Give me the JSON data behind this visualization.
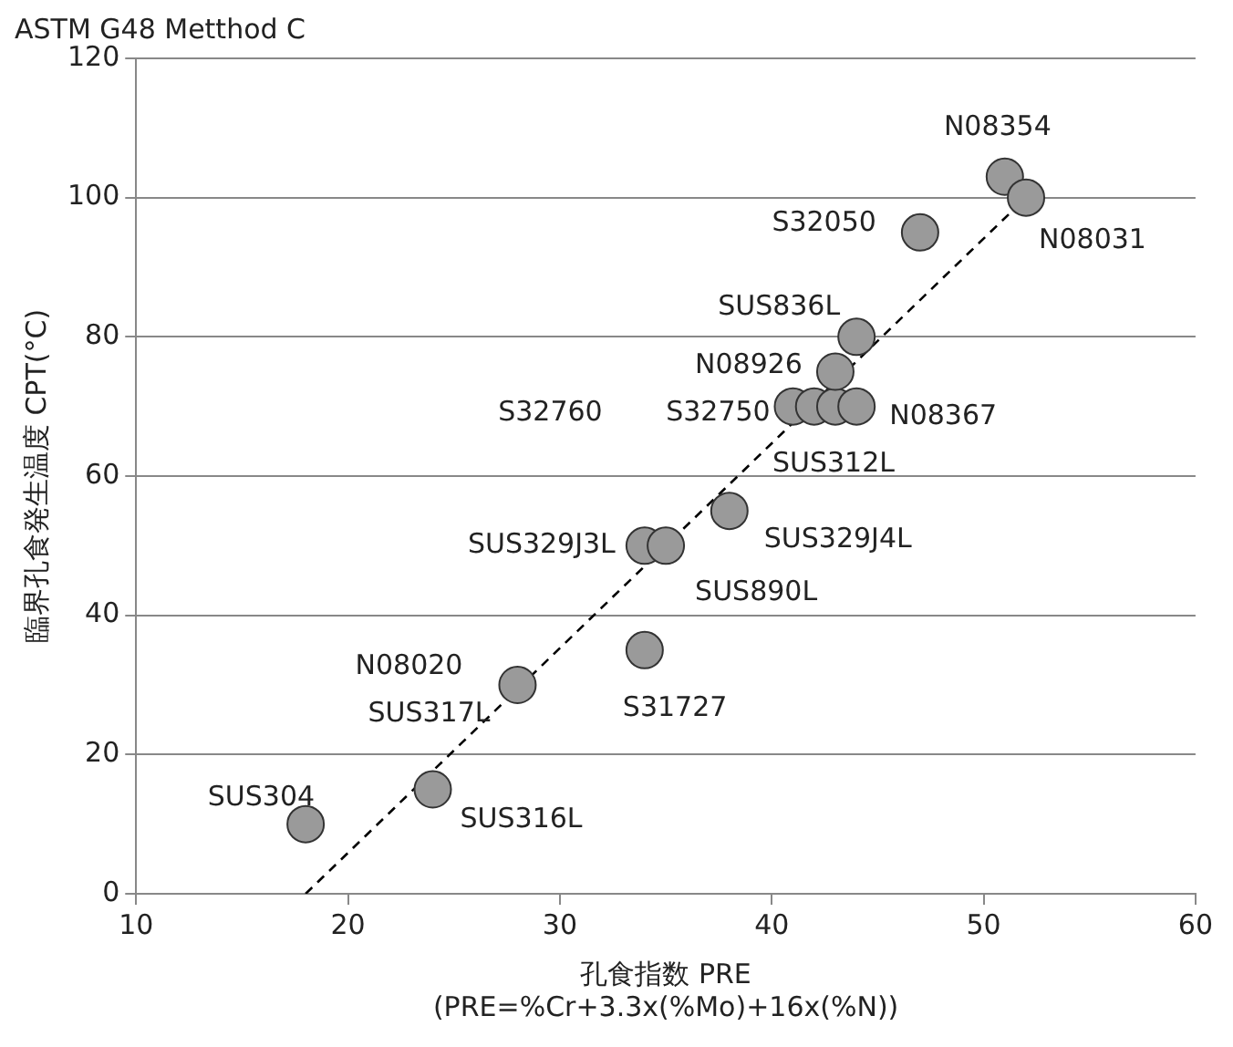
{
  "chart_data": {
    "type": "scatter",
    "title": "ASTM G48 Metthod C",
    "xlabel": "孔食指数 PRE\n(PRE=%Cr+3.3x(%Mo)+16x(%N))",
    "ylabel": "臨界孔食発生温度 CPT(°C)",
    "xlim": [
      10,
      60
    ],
    "xticks": [
      10,
      20,
      30,
      40,
      50,
      60
    ],
    "ylim": [
      0,
      120
    ],
    "yticks": [
      0,
      20,
      40,
      60,
      80,
      100,
      120
    ],
    "grid": "y",
    "legend": false,
    "marker": "circle",
    "series": [
      {
        "type": "scatter",
        "color": "#9a9a9a",
        "x": [
          18,
          24,
          28,
          34,
          34,
          35,
          38,
          41,
          42,
          43,
          44,
          43,
          44,
          47,
          51,
          52
        ],
        "values": [
          10,
          15,
          30,
          35,
          50,
          50,
          55,
          70,
          70,
          70,
          70,
          75,
          80,
          95,
          103,
          100
        ]
      },
      {
        "type": "line",
        "color": "#000000",
        "line_style": "dashed",
        "marker": "none",
        "x": [
          18,
          52
        ],
        "values": [
          0,
          100
        ]
      }
    ],
    "annotations": [
      {
        "text": "SUS304",
        "x": 18,
        "y": 10
      },
      {
        "text": "N08020",
        "x": 28,
        "y": 30
      },
      {
        "text": "SUS317L",
        "x": 28,
        "y": 30
      },
      {
        "text": "SUS316L",
        "x": 24,
        "y": 15
      },
      {
        "text": "S31727",
        "x": 34,
        "y": 35
      },
      {
        "text": "SUS329J3L",
        "x": 34,
        "y": 50
      },
      {
        "text": "SUS890L",
        "x": 35,
        "y": 50
      },
      {
        "text": "SUS329J4L",
        "x": 38,
        "y": 55
      },
      "S32760",
      {
        "text": "S32750",
        "x": 42,
        "y": 70
      },
      {
        "text": "SUS312L",
        "x": 43,
        "y": 70
      },
      {
        "text": "N08367",
        "x": 44,
        "y": 70
      },
      {
        "text": "N08926",
        "x": 43,
        "y": 75
      },
      {
        "text": "SUS836L",
        "x": 44,
        "y": 80
      },
      {
        "text": "S32050",
        "x": 47,
        "y": 95
      },
      {
        "text": "N08354",
        "x": 51,
        "y": 103
      },
      {
        "text": "N08031",
        "x": 52,
        "y": 100
      }
    ]
  }
}
